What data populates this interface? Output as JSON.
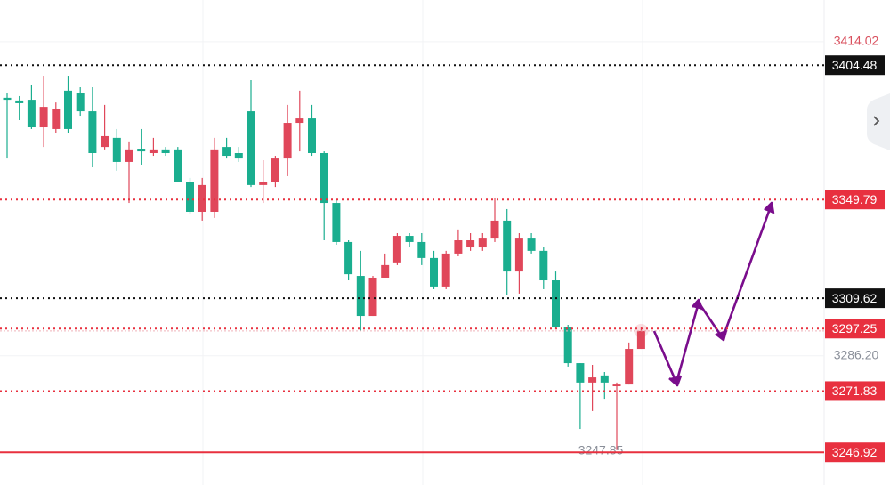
{
  "chart_data": {
    "type": "candlestick",
    "ylim": [
      3233.6,
      3431.0
    ],
    "yticks": [
      3414.02,
      {
        "value": 3286.2,
        "label": "3286.20"
      }
    ],
    "grid": true,
    "up_color": "#e0475a",
    "down_color": "#1aae8f",
    "open": [
      3391.2,
      3390.1,
      3390.4,
      3379.2,
      3378.5,
      3394.1,
      3393.0,
      3385.7,
      3371.2,
      3374.9,
      3365.1,
      3370.5,
      3368.7,
      3370.2,
      3370.2,
      3356.8,
      3344.8,
      3344.8,
      3371.2,
      3368.7,
      3385.7,
      3355.7,
      3356.8,
      3366.5,
      3381.0,
      3382.8,
      3368.7,
      3348.4,
      3332.5,
      3318.7,
      3302.4,
      3318.0,
      3324.2,
      3335.0,
      3332.5,
      3326.0,
      3314.4,
      3327.8,
      3330.3,
      3330.3,
      3333.9,
      3341.2,
      3320.5,
      3333.9,
      3328.9,
      3316.9,
      3297.7,
      3283.2,
      3275.3,
      3278.2,
      3273.8,
      3274.5,
      3289.0
    ],
    "high": [
      3393.0,
      3391.9,
      3396.6,
      3400.2,
      3389.3,
      3400.2,
      3395.5,
      3395.5,
      3388.3,
      3378.5,
      3373.1,
      3378.5,
      3374.9,
      3371.2,
      3371.2,
      3358.6,
      3358.6,
      3374.9,
      3374.9,
      3371.2,
      3398.4,
      3365.8,
      3367.6,
      3388.3,
      3394.1,
      3388.3,
      3369.4,
      3349.5,
      3333.2,
      3328.9,
      3318.7,
      3327.8,
      3336.1,
      3336.1,
      3336.1,
      3328.9,
      3328.9,
      3337.6,
      3336.1,
      3336.1,
      3350.6,
      3345.9,
      3336.1,
      3336.1,
      3330.3,
      3320.5,
      3298.8,
      3283.2,
      3282.5,
      3279.6,
      3275.3,
      3291.6,
      3297.7
    ],
    "low": [
      3366.5,
      3382.1,
      3378.5,
      3371.2,
      3376.7,
      3376.7,
      3383.9,
      3362.9,
      3370.2,
      3361.5,
      3348.4,
      3364.0,
      3367.6,
      3367.6,
      3356.8,
      3344.1,
      3341.2,
      3342.3,
      3366.5,
      3365.1,
      3354.9,
      3348.4,
      3354.9,
      3359.3,
      3369.4,
      3367.6,
      3333.2,
      3331.4,
      3316.9,
      3296.3,
      3302.4,
      3318.0,
      3323.1,
      3330.3,
      3323.1,
      3313.3,
      3313.3,
      3326.7,
      3328.9,
      3328.9,
      3332.5,
      3310.8,
      3311.5,
      3327.8,
      3313.3,
      3297.0,
      3281.8,
      3256.4,
      3263.7,
      3268.7,
      3247.85,
      3274.5,
      3289.0
    ],
    "close": [
      3390.4,
      3389.0,
      3379.2,
      3387.5,
      3386.8,
      3378.5,
      3385.7,
      3368.7,
      3375.6,
      3365.1,
      3370.2,
      3369.4,
      3370.2,
      3368.7,
      3356.8,
      3344.8,
      3355.7,
      3370.2,
      3367.6,
      3366.5,
      3355.7,
      3356.8,
      3366.5,
      3381.0,
      3382.8,
      3368.7,
      3348.4,
      3332.5,
      3319.4,
      3302.4,
      3318.0,
      3323.1,
      3335.0,
      3332.5,
      3326.0,
      3314.4,
      3327.8,
      3333.2,
      3333.2,
      3333.9,
      3341.2,
      3320.5,
      3333.9,
      3328.9,
      3316.9,
      3297.7,
      3283.2,
      3275.3,
      3277.4,
      3275.3,
      3274.5,
      3289.0,
      3296.3
    ],
    "levels": [
      {
        "value": 3404.48,
        "color": "#111111",
        "style": "dotted"
      },
      {
        "value": 3349.79,
        "color": "#e8303f",
        "style": "dotted"
      },
      {
        "value": 3309.62,
        "color": "#111111",
        "style": "dotted"
      },
      {
        "value": 3297.25,
        "color": "#e8303f",
        "style": "dotted"
      },
      {
        "value": 3271.83,
        "color": "#e8303f",
        "style": "dotted"
      },
      {
        "value": 3246.92,
        "color": "#e8303f",
        "style": "solid"
      }
    ]
  }
}
